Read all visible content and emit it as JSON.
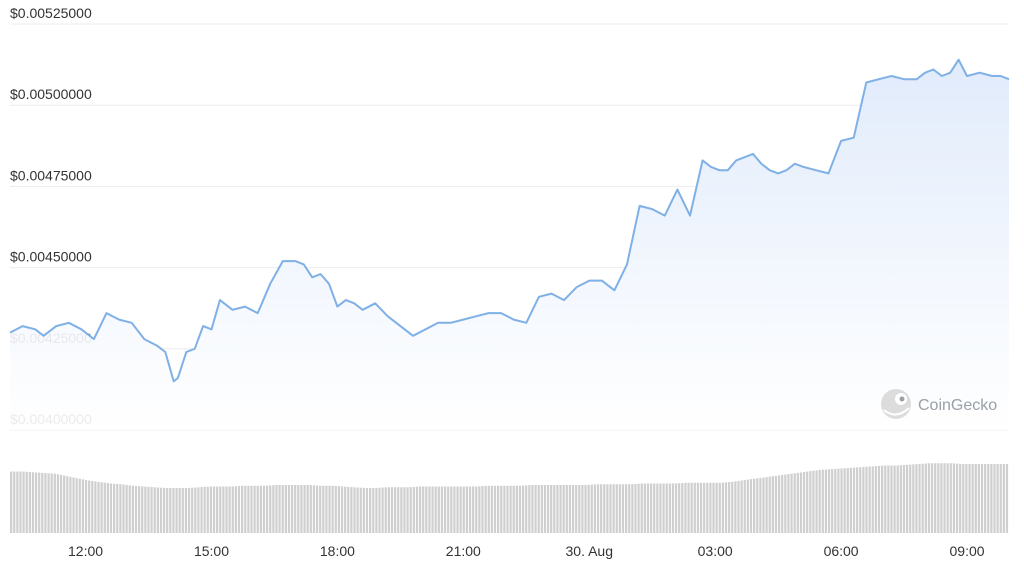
{
  "watermark": {
    "text": "CoinGecko",
    "icon": "gecko-logo-icon"
  },
  "colors": {
    "line": "#7fb0e6",
    "area_top": "#dfeafb",
    "area_bottom": "#ffffff",
    "grid": "#ececec",
    "volume": "#cfcfcf",
    "text": "#333333"
  },
  "chart_data": {
    "type": "line",
    "title": "",
    "xlabel": "",
    "ylabel": "",
    "currency_prefix": "$",
    "ylim": [
      0.004,
      0.00525
    ],
    "y_ticks": [
      "$0.00525000",
      "$0.00500000",
      "$0.00475000",
      "$0.00450000",
      "$0.00425000",
      "$0.00400000"
    ],
    "y_tick_values": [
      0.00525,
      0.005,
      0.00475,
      0.0045,
      0.00425,
      0.004
    ],
    "x_ticks": [
      "12:00",
      "15:00",
      "18:00",
      "21:00",
      "30. Aug",
      "03:00",
      "06:00",
      "09:00"
    ],
    "x_tick_hours": [
      12,
      15,
      18,
      21,
      24,
      27,
      30,
      33
    ],
    "x_range_hours": [
      10.2,
      34.0
    ],
    "grid": "horizontal",
    "legend": "none",
    "series": [
      {
        "x": [
          10.2,
          10.5,
          10.8,
          11.0,
          11.3,
          11.6,
          11.9,
          12.2,
          12.5,
          12.8,
          13.1,
          13.4,
          13.7,
          13.9,
          14.1,
          14.2,
          14.4,
          14.6,
          14.8,
          15.0,
          15.2,
          15.5,
          15.8,
          16.1,
          16.4,
          16.7,
          17.0,
          17.2,
          17.4,
          17.6,
          17.8,
          18.0,
          18.2,
          18.4,
          18.6,
          18.9,
          19.2,
          19.5,
          19.8,
          20.1,
          20.4,
          20.7,
          21.0,
          21.3,
          21.6,
          21.9,
          22.2,
          22.5,
          22.8,
          23.1,
          23.4,
          23.7,
          24.0,
          24.3,
          24.6,
          24.9,
          25.2,
          25.5,
          25.8,
          26.1,
          26.4,
          26.7,
          26.9,
          27.1,
          27.3,
          27.5,
          27.7,
          27.9,
          28.1,
          28.3,
          28.5,
          28.7,
          28.9,
          29.1,
          29.4,
          29.7,
          30.0,
          30.3,
          30.6,
          30.9,
          31.2,
          31.5,
          31.8,
          32.0,
          32.2,
          32.4,
          32.6,
          32.8,
          33.0,
          33.3,
          33.6,
          33.8,
          34.0
        ],
        "values": [
          0.0043,
          0.00432,
          0.00431,
          0.00429,
          0.00432,
          0.00433,
          0.00431,
          0.00428,
          0.00436,
          0.00434,
          0.00433,
          0.00428,
          0.00426,
          0.00424,
          0.00415,
          0.00416,
          0.00424,
          0.00425,
          0.00432,
          0.00431,
          0.0044,
          0.00437,
          0.00438,
          0.00436,
          0.00445,
          0.00452,
          0.00452,
          0.00451,
          0.00447,
          0.00448,
          0.00445,
          0.00438,
          0.0044,
          0.00439,
          0.00437,
          0.00439,
          0.00435,
          0.00432,
          0.00429,
          0.00431,
          0.00433,
          0.00433,
          0.00434,
          0.00435,
          0.00436,
          0.00436,
          0.00434,
          0.00433,
          0.00441,
          0.00442,
          0.0044,
          0.00444,
          0.00446,
          0.00446,
          0.00443,
          0.00451,
          0.00469,
          0.00468,
          0.00466,
          0.00474,
          0.00466,
          0.00483,
          0.00481,
          0.0048,
          0.0048,
          0.00483,
          0.00484,
          0.00485,
          0.00482,
          0.0048,
          0.00479,
          0.0048,
          0.00482,
          0.00481,
          0.0048,
          0.00479,
          0.00489,
          0.0049,
          0.00507,
          0.00508,
          0.00509,
          0.00508,
          0.00508,
          0.0051,
          0.00511,
          0.00509,
          0.0051,
          0.00514,
          0.00509,
          0.0051,
          0.00509,
          0.00509,
          0.00508
        ]
      }
    ],
    "volume": {
      "values": [
        0.82,
        0.82,
        0.81,
        0.8,
        0.79,
        0.76,
        0.73,
        0.7,
        0.68,
        0.66,
        0.65,
        0.63,
        0.62,
        0.61,
        0.6,
        0.6,
        0.6,
        0.61,
        0.62,
        0.62,
        0.62,
        0.63,
        0.63,
        0.63,
        0.64,
        0.64,
        0.64,
        0.64,
        0.63,
        0.63,
        0.62,
        0.61,
        0.6,
        0.6,
        0.61,
        0.61,
        0.61,
        0.62,
        0.62,
        0.62,
        0.62,
        0.62,
        0.62,
        0.63,
        0.63,
        0.63,
        0.63,
        0.64,
        0.64,
        0.64,
        0.64,
        0.64,
        0.64,
        0.65,
        0.65,
        0.65,
        0.65,
        0.66,
        0.66,
        0.66,
        0.66,
        0.67,
        0.67,
        0.67,
        0.67,
        0.68,
        0.7,
        0.72,
        0.74,
        0.76,
        0.78,
        0.8,
        0.82,
        0.84,
        0.85,
        0.86,
        0.87,
        0.88,
        0.89,
        0.9,
        0.9,
        0.91,
        0.92,
        0.93,
        0.93,
        0.93,
        0.92,
        0.92,
        0.92,
        0.92,
        0.92
      ]
    }
  }
}
